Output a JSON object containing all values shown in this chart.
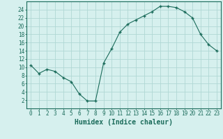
{
  "x": [
    0,
    1,
    2,
    3,
    4,
    5,
    6,
    7,
    8,
    9,
    10,
    11,
    12,
    13,
    14,
    15,
    16,
    17,
    18,
    19,
    20,
    21,
    22,
    23
  ],
  "y": [
    10.5,
    8.5,
    9.5,
    9.0,
    7.5,
    6.5,
    3.5,
    1.8,
    1.8,
    11.0,
    14.5,
    18.5,
    20.5,
    21.5,
    22.5,
    23.5,
    24.8,
    24.8,
    24.5,
    23.5,
    22.0,
    18.0,
    15.5,
    14.0
  ],
  "line_color": "#1a6b5a",
  "marker": "+",
  "marker_size": 3,
  "bg_color": "#d6f0ee",
  "grid_color": "#b0d8d4",
  "xlabel": "Humidex (Indice chaleur)",
  "xlim": [
    -0.5,
    23.5
  ],
  "ylim": [
    0,
    26
  ],
  "yticks": [
    2,
    4,
    6,
    8,
    10,
    12,
    14,
    16,
    18,
    20,
    22,
    24
  ],
  "xticks": [
    0,
    1,
    2,
    3,
    4,
    5,
    6,
    7,
    8,
    9,
    10,
    11,
    12,
    13,
    14,
    15,
    16,
    17,
    18,
    19,
    20,
    21,
    22,
    23
  ],
  "axis_color": "#1a6b5a",
  "tick_color": "#1a6b5a",
  "label_fontsize": 5.5,
  "xlabel_fontsize": 7
}
